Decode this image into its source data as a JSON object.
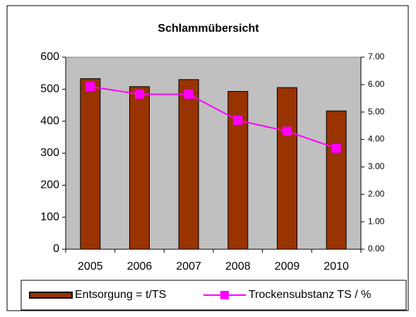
{
  "chart_data": {
    "type": "bar_line",
    "title": "Schlammübersicht",
    "categories": [
      "2005",
      "2006",
      "2007",
      "2008",
      "2009",
      "2010"
    ],
    "series": [
      {
        "name": "Entsorgung = t/TS",
        "type": "bar",
        "color": "#993300",
        "values": [
          533,
          508,
          530,
          493,
          505,
          432
        ]
      },
      {
        "name": "Trockensubstanz TS / %",
        "type": "line",
        "axis": "y2",
        "color": "#ff00ff",
        "values": [
          5.93,
          5.65,
          5.65,
          4.7,
          4.3,
          3.68
        ]
      }
    ],
    "ylim": [
      0,
      600
    ],
    "yticks": [
      0,
      100,
      200,
      300,
      400,
      500,
      600
    ],
    "y2lim": [
      0,
      7
    ],
    "y2ticks": [
      {
        "value": 0,
        "label": "0.00"
      },
      {
        "value": 1,
        "label": "1.00"
      },
      {
        "value": 2,
        "label": "2.00"
      },
      {
        "value": 3,
        "label": "3.00"
      },
      {
        "value": 4,
        "label": "4.00"
      },
      {
        "value": 5,
        "label": "5.00"
      },
      {
        "value": 6,
        "label": "6.00"
      },
      {
        "value": 7,
        "label": "7.00"
      }
    ],
    "grid": false,
    "legend": "bottom",
    "plot_background": "#c0c0c0"
  }
}
